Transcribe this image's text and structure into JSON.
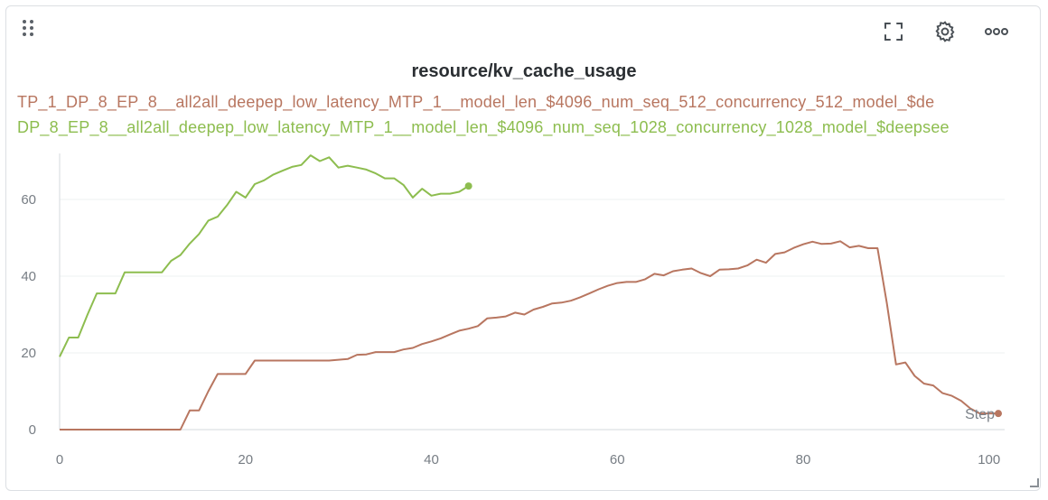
{
  "panel": {
    "toolbar": {
      "drag_icon": "drag-handle-icon",
      "fullscreen_icon": "fullscreen-icon",
      "settings_icon": "gear-icon",
      "more_icon": "more-horizontal-icon"
    }
  },
  "chart_data": {
    "type": "line",
    "title": "resource/kv_cache_usage",
    "xlabel": "Step",
    "ylabel": "",
    "xlim": [
      0,
      101
    ],
    "ylim": [
      0,
      72
    ],
    "xticks": [
      0,
      20,
      40,
      60,
      80,
      100
    ],
    "yticks": [
      0,
      20,
      40,
      60
    ],
    "grid": true,
    "legend_position": "top",
    "series": [
      {
        "name": "TP_1_DP_8_EP_8__all2all_deepep_low_latency_MTP_1__model_len_$4096_num_seq_512_concurrency_512_model_$de",
        "color": "#b87660",
        "x": [
          0,
          11,
          13,
          14,
          15,
          16,
          17,
          18,
          19,
          20,
          21,
          22,
          23,
          24,
          25,
          26,
          27,
          28,
          29,
          30,
          31,
          32,
          33,
          34,
          35,
          36,
          37,
          38,
          39,
          40,
          41,
          42,
          43,
          44,
          45,
          46,
          47,
          48,
          49,
          50,
          51,
          52,
          53,
          54,
          55,
          56,
          57,
          58,
          59,
          60,
          61,
          62,
          63,
          64,
          65,
          66,
          67,
          68,
          69,
          70,
          71,
          72,
          73,
          74,
          75,
          76,
          77,
          78,
          79,
          80,
          81,
          82,
          83,
          84,
          85,
          86,
          87,
          88,
          89,
          90,
          91,
          92,
          93,
          94,
          95,
          96,
          97,
          98,
          99,
          100,
          101
        ],
        "y": [
          0,
          0,
          0,
          5,
          5,
          10,
          14.5,
          14.5,
          14.5,
          14.5,
          18,
          18,
          18,
          18,
          18,
          18,
          18,
          18,
          18,
          18.2,
          18.4,
          19.5,
          19.6,
          20.2,
          20.2,
          20.2,
          20.9,
          21.3,
          22.3,
          23.0,
          23.8,
          24.8,
          25.8,
          26.3,
          27.0,
          29.0,
          29.2,
          29.5,
          30.5,
          30.0,
          31.3,
          32.0,
          32.9,
          33.1,
          33.6,
          34.5,
          35.5,
          36.6,
          37.5,
          38.2,
          38.5,
          38.5,
          39.2,
          40.6,
          40.2,
          41.3,
          41.7,
          42.0,
          40.8,
          40.0,
          41.7,
          41.8,
          42.0,
          42.8,
          44.3,
          43.5,
          45.8,
          46.2,
          47.4,
          48.3,
          49.0,
          48.4,
          48.5,
          49.1,
          47.5,
          47.9,
          47.3,
          47.3,
          33.0,
          17.0,
          17.5,
          14.0,
          12.0,
          11.5,
          9.5,
          8.8,
          7.5,
          5.5,
          4.2,
          4.2,
          4.2
        ]
      },
      {
        "name": "DP_8_EP_8__all2all_deepep_low_latency_MTP_1__model_len_$4096_num_seq_1028_concurrency_1028_model_$deepsee",
        "color": "#8dbd4f",
        "x": [
          0,
          1,
          2,
          3,
          4,
          5,
          6,
          7,
          8,
          9,
          10,
          11,
          12,
          13,
          14,
          15,
          16,
          17,
          18,
          19,
          20,
          21,
          22,
          23,
          24,
          25,
          26,
          27,
          28,
          29,
          30,
          31,
          32,
          33,
          34,
          35,
          36,
          37,
          38,
          39,
          40,
          41,
          42,
          43,
          44
        ],
        "y": [
          19,
          24,
          24,
          30,
          35.5,
          35.5,
          35.5,
          41,
          41,
          41,
          41,
          41,
          44,
          45.5,
          48.5,
          51,
          54.5,
          55.5,
          58.5,
          62,
          60.5,
          64,
          65,
          66.5,
          67.5,
          68.5,
          69,
          71.5,
          70,
          71,
          68.3,
          68.8,
          68.3,
          67.8,
          66.8,
          65.5,
          65.5,
          63.8,
          60.5,
          62.8,
          61,
          61.5,
          61.5,
          62,
          63.5
        ]
      }
    ]
  }
}
